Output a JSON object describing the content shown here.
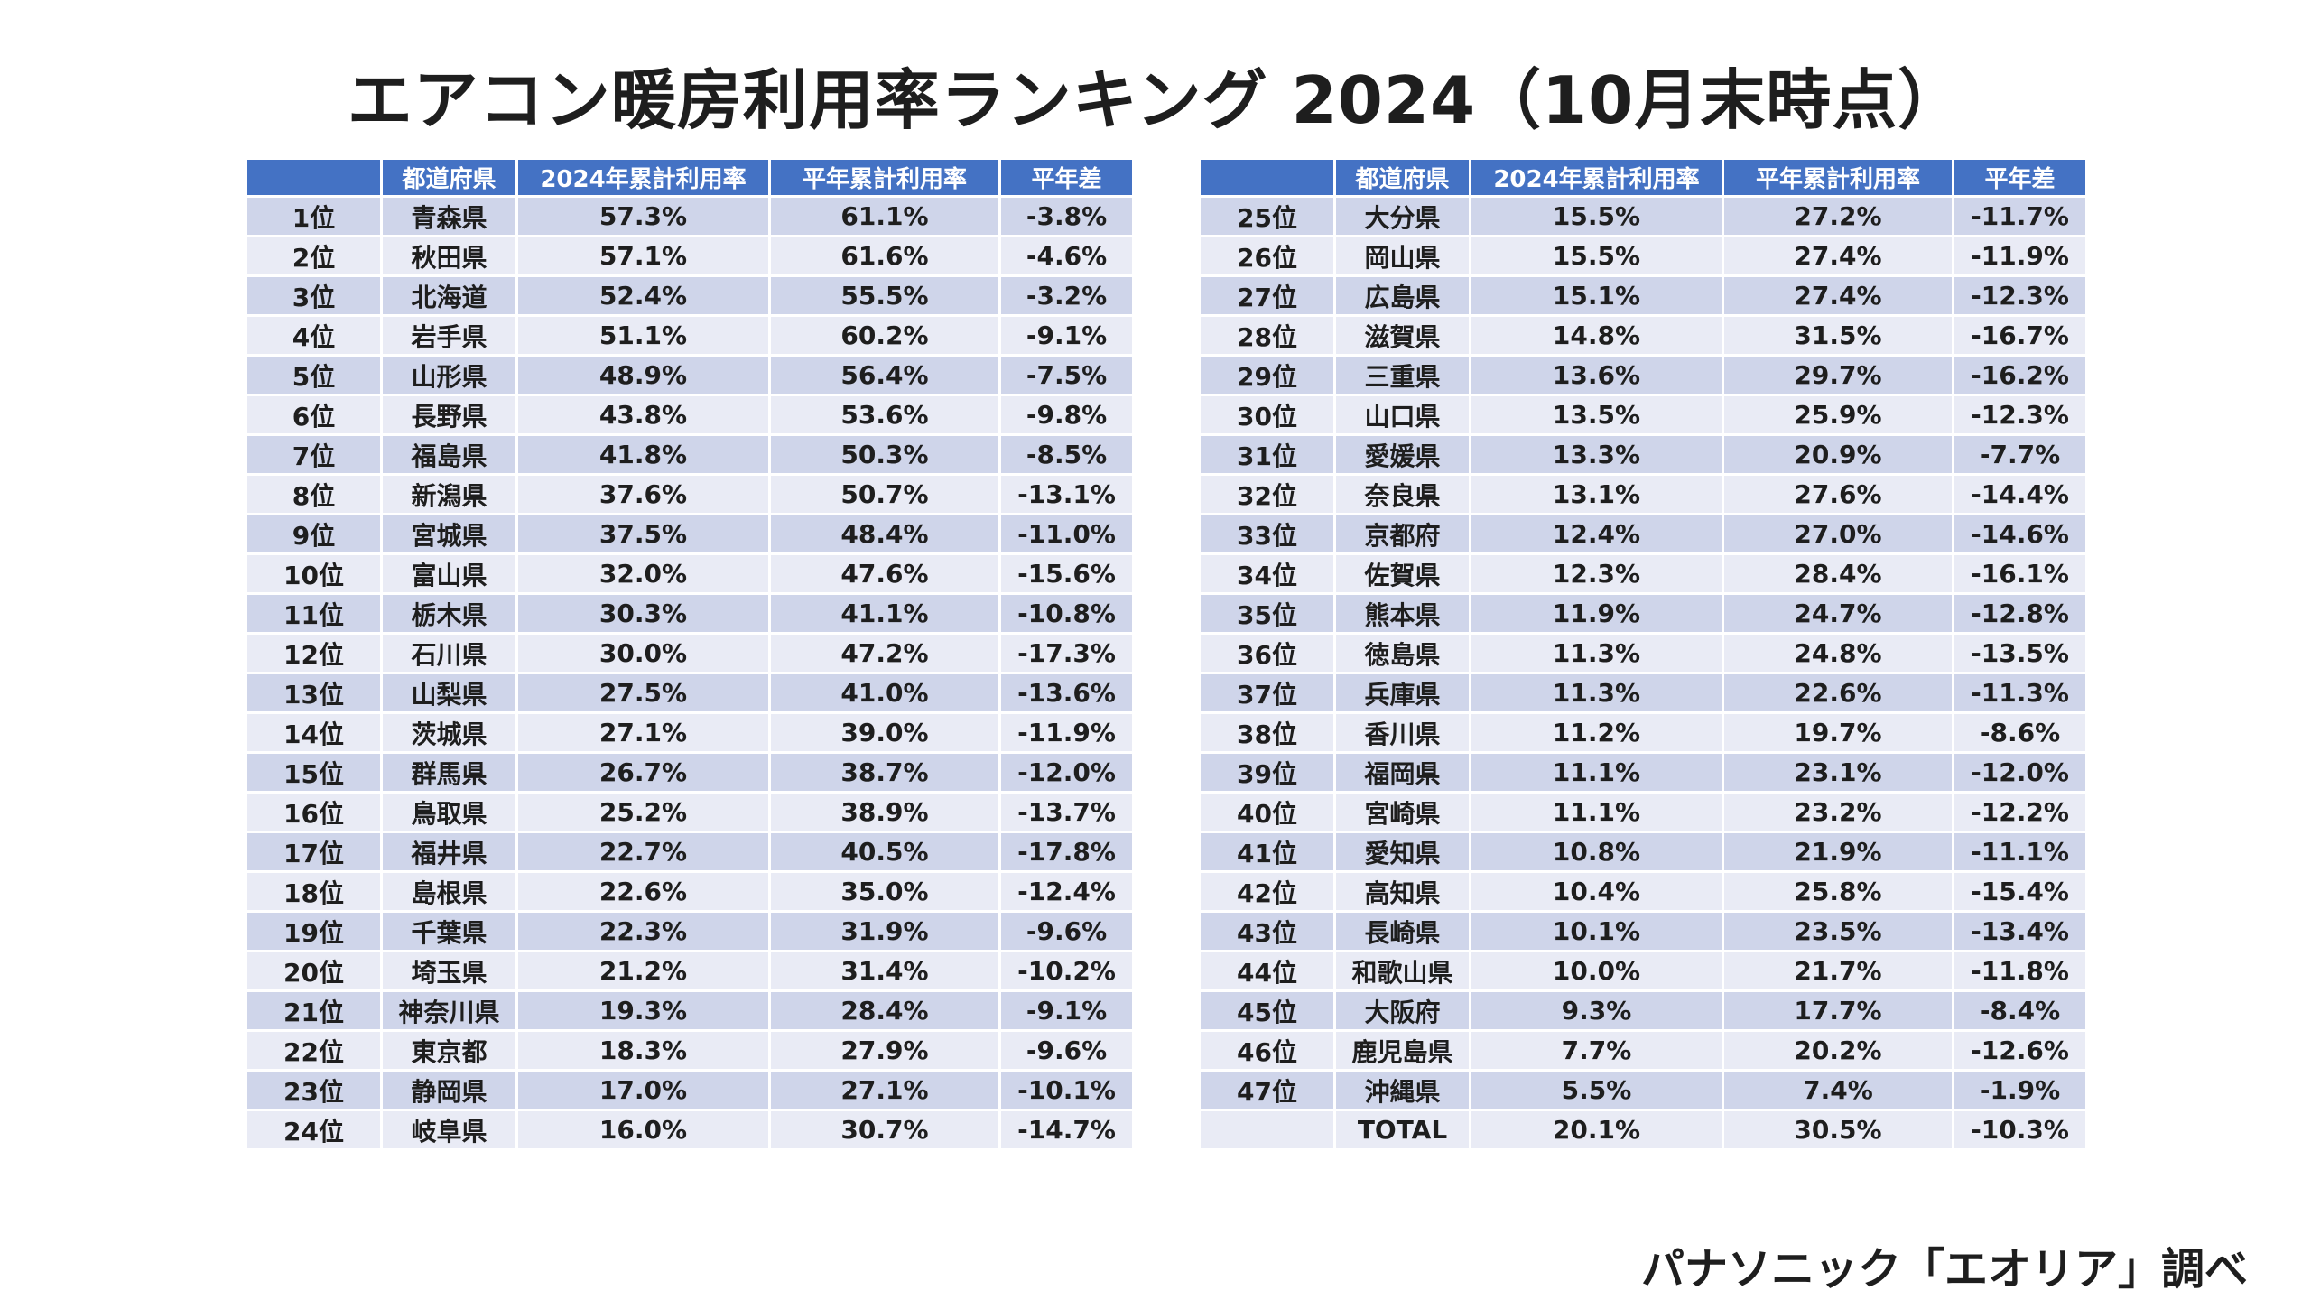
{
  "title": "エアコン暖房利用率ランキング 2024（10月末時点）",
  "headers": [
    "",
    "都道府県",
    "2024年累計利用率",
    "平年累計利用率",
    "平年差"
  ],
  "left_rows": [
    [
      "1位",
      "青森県",
      "57.3%",
      "61.1%",
      "-3.8%"
    ],
    [
      "2位",
      "秋田県",
      "57.1%",
      "61.6%",
      "-4.6%"
    ],
    [
      "3位",
      "北海道",
      "52.4%",
      "55.5%",
      "-3.2%"
    ],
    [
      "4位",
      "岩手県",
      "51.1%",
      "60.2%",
      "-9.1%"
    ],
    [
      "5位",
      "山形県",
      "48.9%",
      "56.4%",
      "-7.5%"
    ],
    [
      "6位",
      "長野県",
      "43.8%",
      "53.6%",
      "-9.8%"
    ],
    [
      "7位",
      "福島県",
      "41.8%",
      "50.3%",
      "-8.5%"
    ],
    [
      "8位",
      "新潟県",
      "37.6%",
      "50.7%",
      "-13.1%"
    ],
    [
      "9位",
      "宮城県",
      "37.5%",
      "48.4%",
      "-11.0%"
    ],
    [
      "10位",
      "富山県",
      "32.0%",
      "47.6%",
      "-15.6%"
    ],
    [
      "11位",
      "栃木県",
      "30.3%",
      "41.1%",
      "-10.8%"
    ],
    [
      "12位",
      "石川県",
      "30.0%",
      "47.2%",
      "-17.3%"
    ],
    [
      "13位",
      "山梨県",
      "27.5%",
      "41.0%",
      "-13.6%"
    ],
    [
      "14位",
      "茨城県",
      "27.1%",
      "39.0%",
      "-11.9%"
    ],
    [
      "15位",
      "群馬県",
      "26.7%",
      "38.7%",
      "-12.0%"
    ],
    [
      "16位",
      "鳥取県",
      "25.2%",
      "38.9%",
      "-13.7%"
    ],
    [
      "17位",
      "福井県",
      "22.7%",
      "40.5%",
      "-17.8%"
    ],
    [
      "18位",
      "島根県",
      "22.6%",
      "35.0%",
      "-12.4%"
    ],
    [
      "19位",
      "千葉県",
      "22.3%",
      "31.9%",
      "-9.6%"
    ],
    [
      "20位",
      "埼玉県",
      "21.2%",
      "31.4%",
      "-10.2%"
    ],
    [
      "21位",
      "神奈川県",
      "19.3%",
      "28.4%",
      "-9.1%"
    ],
    [
      "22位",
      "東京都",
      "18.3%",
      "27.9%",
      "-9.6%"
    ],
    [
      "23位",
      "静岡県",
      "17.0%",
      "27.1%",
      "-10.1%"
    ],
    [
      "24位",
      "岐阜県",
      "16.0%",
      "30.7%",
      "-14.7%"
    ]
  ],
  "right_rows": [
    [
      "25位",
      "大分県",
      "15.5%",
      "27.2%",
      "-11.7%"
    ],
    [
      "26位",
      "岡山県",
      "15.5%",
      "27.4%",
      "-11.9%"
    ],
    [
      "27位",
      "広島県",
      "15.1%",
      "27.4%",
      "-12.3%"
    ],
    [
      "28位",
      "滋賀県",
      "14.8%",
      "31.5%",
      "-16.7%"
    ],
    [
      "29位",
      "三重県",
      "13.6%",
      "29.7%",
      "-16.2%"
    ],
    [
      "30位",
      "山口県",
      "13.5%",
      "25.9%",
      "-12.3%"
    ],
    [
      "31位",
      "愛媛県",
      "13.3%",
      "20.9%",
      "-7.7%"
    ],
    [
      "32位",
      "奈良県",
      "13.1%",
      "27.6%",
      "-14.4%"
    ],
    [
      "33位",
      "京都府",
      "12.4%",
      "27.0%",
      "-14.6%"
    ],
    [
      "34位",
      "佐賀県",
      "12.3%",
      "28.4%",
      "-16.1%"
    ],
    [
      "35位",
      "熊本県",
      "11.9%",
      "24.7%",
      "-12.8%"
    ],
    [
      "36位",
      "徳島県",
      "11.3%",
      "24.8%",
      "-13.5%"
    ],
    [
      "37位",
      "兵庫県",
      "11.3%",
      "22.6%",
      "-11.3%"
    ],
    [
      "38位",
      "香川県",
      "11.2%",
      "19.7%",
      "-8.6%"
    ],
    [
      "39位",
      "福岡県",
      "11.1%",
      "23.1%",
      "-12.0%"
    ],
    [
      "40位",
      "宮崎県",
      "11.1%",
      "23.2%",
      "-12.2%"
    ],
    [
      "41位",
      "愛知県",
      "10.8%",
      "21.9%",
      "-11.1%"
    ],
    [
      "42位",
      "高知県",
      "10.4%",
      "25.8%",
      "-15.4%"
    ],
    [
      "43位",
      "長崎県",
      "10.1%",
      "23.5%",
      "-13.4%"
    ],
    [
      "44位",
      "和歌山県",
      "10.0%",
      "21.7%",
      "-11.8%"
    ],
    [
      "45位",
      "大阪府",
      "9.3%",
      "17.7%",
      "-8.4%"
    ],
    [
      "46位",
      "鹿児島県",
      "7.7%",
      "20.2%",
      "-12.6%"
    ],
    [
      "47位",
      "沖縄県",
      "5.5%",
      "7.4%",
      "-1.9%"
    ],
    [
      "",
      "TOTAL",
      "20.1%",
      "30.5%",
      "-10.3%"
    ]
  ],
  "source": "パナソニック「エオリア」調べ"
}
